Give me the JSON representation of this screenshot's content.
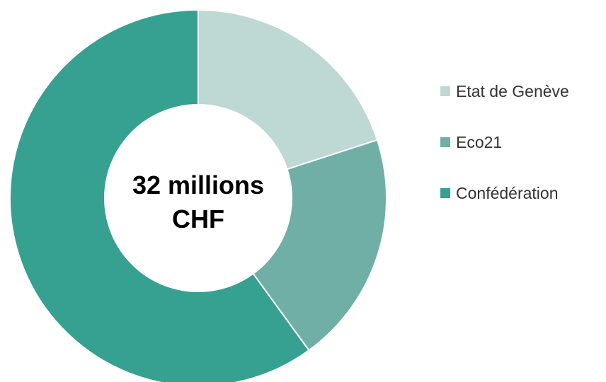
{
  "chart_data": {
    "type": "pie",
    "variant": "donut",
    "center_label": {
      "line1": "32 millions",
      "line2": "CHF"
    },
    "categories": [
      "Etat de Genève",
      "Eco21",
      "Confédération"
    ],
    "values": [
      20,
      20,
      60
    ],
    "colors": [
      "#bed8d4",
      "#6fafa6",
      "#36a091"
    ],
    "legend_position": "right"
  }
}
